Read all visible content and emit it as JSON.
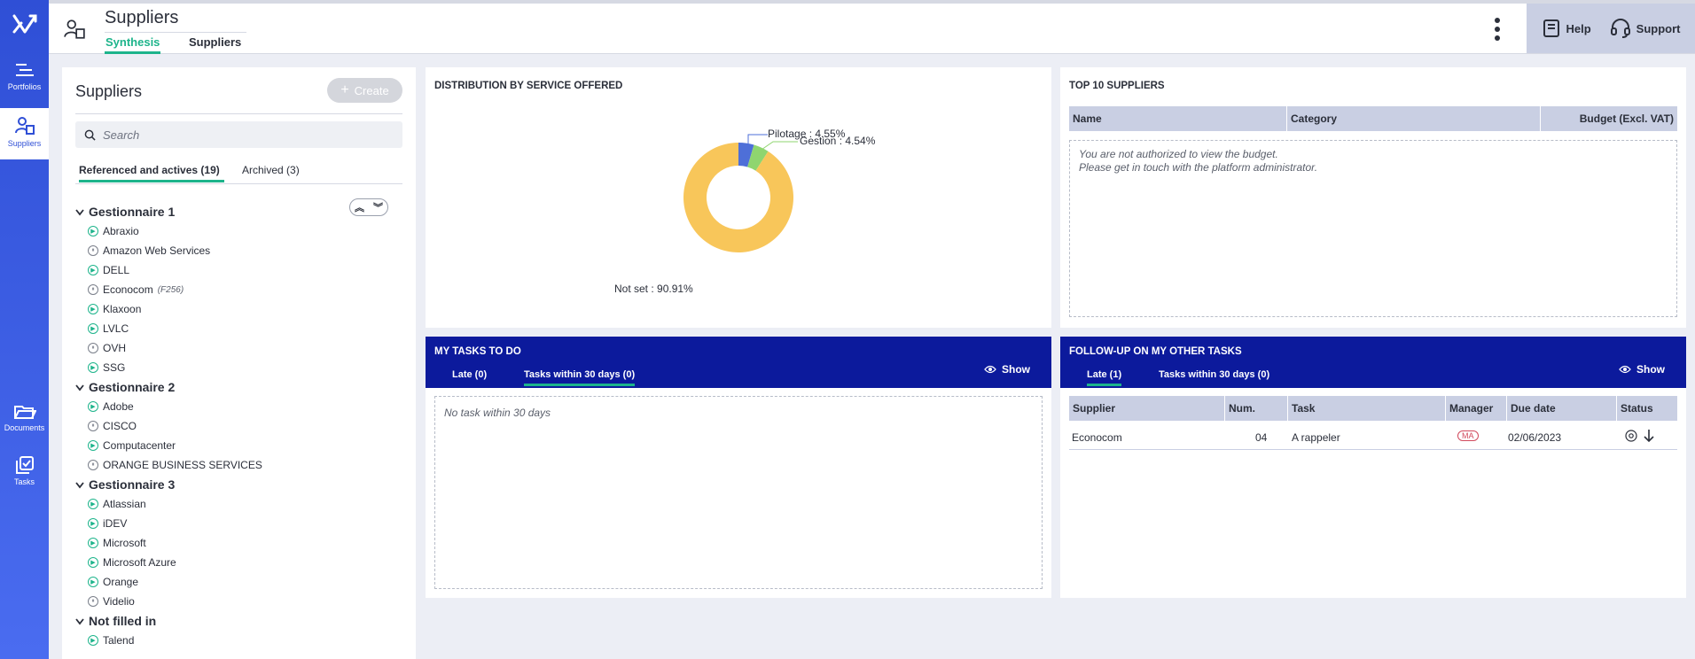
{
  "rail": {
    "items": [
      {
        "label": "Portfolios",
        "icon": "portfolios-icon"
      },
      {
        "label": "Suppliers",
        "icon": "suppliers-icon"
      },
      {
        "label": "Documents",
        "icon": "folder-icon"
      },
      {
        "label": "Tasks",
        "icon": "tasks-icon"
      }
    ]
  },
  "header": {
    "title": "Suppliers",
    "tabs": [
      "Synthesis",
      "Suppliers"
    ],
    "help_label": "Help",
    "support_label": "Support"
  },
  "suppliers_panel": {
    "title": "Suppliers",
    "create_label": "Create",
    "search_placeholder": "Search",
    "tabs": [
      "Referenced and actives (19)",
      "Archived (3)"
    ],
    "groups": [
      {
        "name": "Gestionnaire 1",
        "items": [
          {
            "name": "Abraxio",
            "status": "active"
          },
          {
            "name": "Amazon Web Services",
            "status": "paused"
          },
          {
            "name": "DELL",
            "status": "active"
          },
          {
            "name": "Econocom",
            "status": "paused",
            "note": "(F256)"
          },
          {
            "name": "Klaxoon",
            "status": "active"
          },
          {
            "name": "LVLC",
            "status": "active"
          },
          {
            "name": "OVH",
            "status": "paused"
          },
          {
            "name": "SSG",
            "status": "active"
          }
        ]
      },
      {
        "name": "Gestionnaire 2",
        "items": [
          {
            "name": "Adobe",
            "status": "active"
          },
          {
            "name": "CISCO",
            "status": "paused"
          },
          {
            "name": "Computacenter",
            "status": "active"
          },
          {
            "name": "ORANGE BUSINESS SERVICES",
            "status": "paused"
          }
        ]
      },
      {
        "name": "Gestionnaire 3",
        "items": [
          {
            "name": "Atlassian",
            "status": "active"
          },
          {
            "name": "iDEV",
            "status": "active"
          },
          {
            "name": "Microsoft",
            "status": "active"
          },
          {
            "name": "Microsoft Azure",
            "status": "active"
          },
          {
            "name": "Orange",
            "status": "active"
          },
          {
            "name": "Videlio",
            "status": "paused"
          }
        ]
      },
      {
        "name": "Not filled in",
        "items": [
          {
            "name": "Talend",
            "status": "active"
          }
        ]
      }
    ]
  },
  "distribution": {
    "title": "DISTRIBUTION BY SERVICE OFFERED",
    "labels": [
      "Pilotage : 4.55%",
      "Gestion : 4.54%",
      "Not set : 90.91%"
    ]
  },
  "chart_data": {
    "type": "pie",
    "title": "DISTRIBUTION BY SERVICE OFFERED",
    "categories": [
      "Pilotage",
      "Gestion",
      "Not set"
    ],
    "values": [
      4.55,
      4.54,
      90.91
    ],
    "colors": [
      "#4e6fd8",
      "#8fd56f",
      "#f8c65a"
    ],
    "donut": true
  },
  "top10": {
    "title": "TOP 10 SUPPLIERS",
    "columns": [
      "Name",
      "Category",
      "Budget (Excl. VAT)"
    ],
    "message_line1": "You are not authorized to view the budget.",
    "message_line2": "Please get in touch with the platform administrator."
  },
  "my_tasks": {
    "title": "MY TASKS TO DO",
    "tabs": [
      "Late (0)",
      "Tasks within 30 days (0)"
    ],
    "show_label": "Show",
    "empty_message": "No task within 30 days"
  },
  "follow_up": {
    "title": "FOLLOW-UP ON MY OTHER TASKS",
    "tabs": [
      "Late (1)",
      "Tasks within 30 days (0)"
    ],
    "show_label": "Show",
    "columns": [
      "Supplier",
      "Num.",
      "Task",
      "Manager",
      "Due date",
      "Status"
    ],
    "rows": [
      {
        "supplier": "Econocom",
        "num": "04",
        "task": "A rappeler",
        "manager": "MA",
        "due_date": "02/06/2023"
      }
    ]
  },
  "colors": {
    "accent": "#1db48b",
    "rail": "#2f4fd6",
    "band": "#0c1a9c"
  }
}
